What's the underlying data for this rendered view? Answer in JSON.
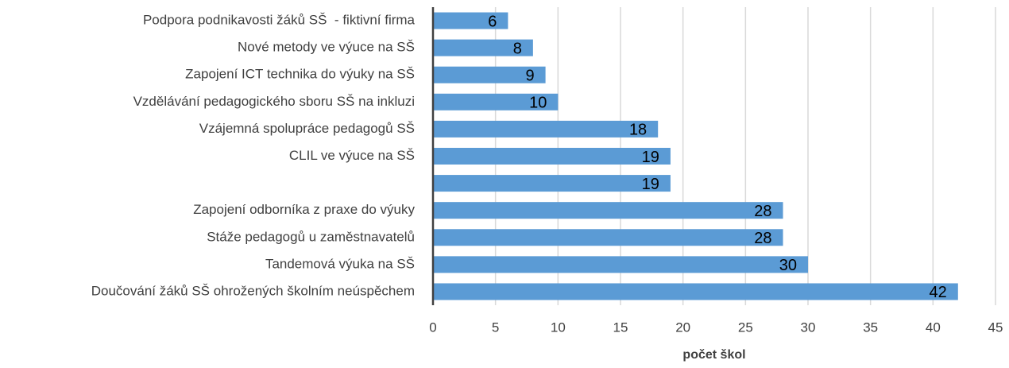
{
  "chart_data": {
    "type": "bar",
    "orientation": "horizontal",
    "categories": [
      "Podpora podnikavosti žáků SŠ  - fiktivní firma",
      "Nové metody ve výuce na SŠ",
      "Zapojení ICT technika do výuky na SŠ",
      "Vzdělávání pedagogického sboru SŠ na inkluzi",
      "Vzájemná spolupráce pedagogů SŠ",
      "CLIL ve výuce na SŠ",
      null,
      "Zapojení odborníka z praxe do výuky",
      "Stáže pedagogů u zaměstnavatelů",
      "Tandemová výuka na SŠ",
      "Doučování žáků SŠ ohrožených školním neúspěchem"
    ],
    "values": [
      6,
      8,
      9,
      10,
      18,
      19,
      19,
      28,
      28,
      30,
      42
    ],
    "color": "#5b9bd5",
    "x_label": "počet škol",
    "xlim": [
      0,
      45
    ],
    "xticks": [
      0,
      5,
      10,
      15,
      20,
      25,
      30,
      35,
      40,
      45
    ],
    "grid": true
  }
}
